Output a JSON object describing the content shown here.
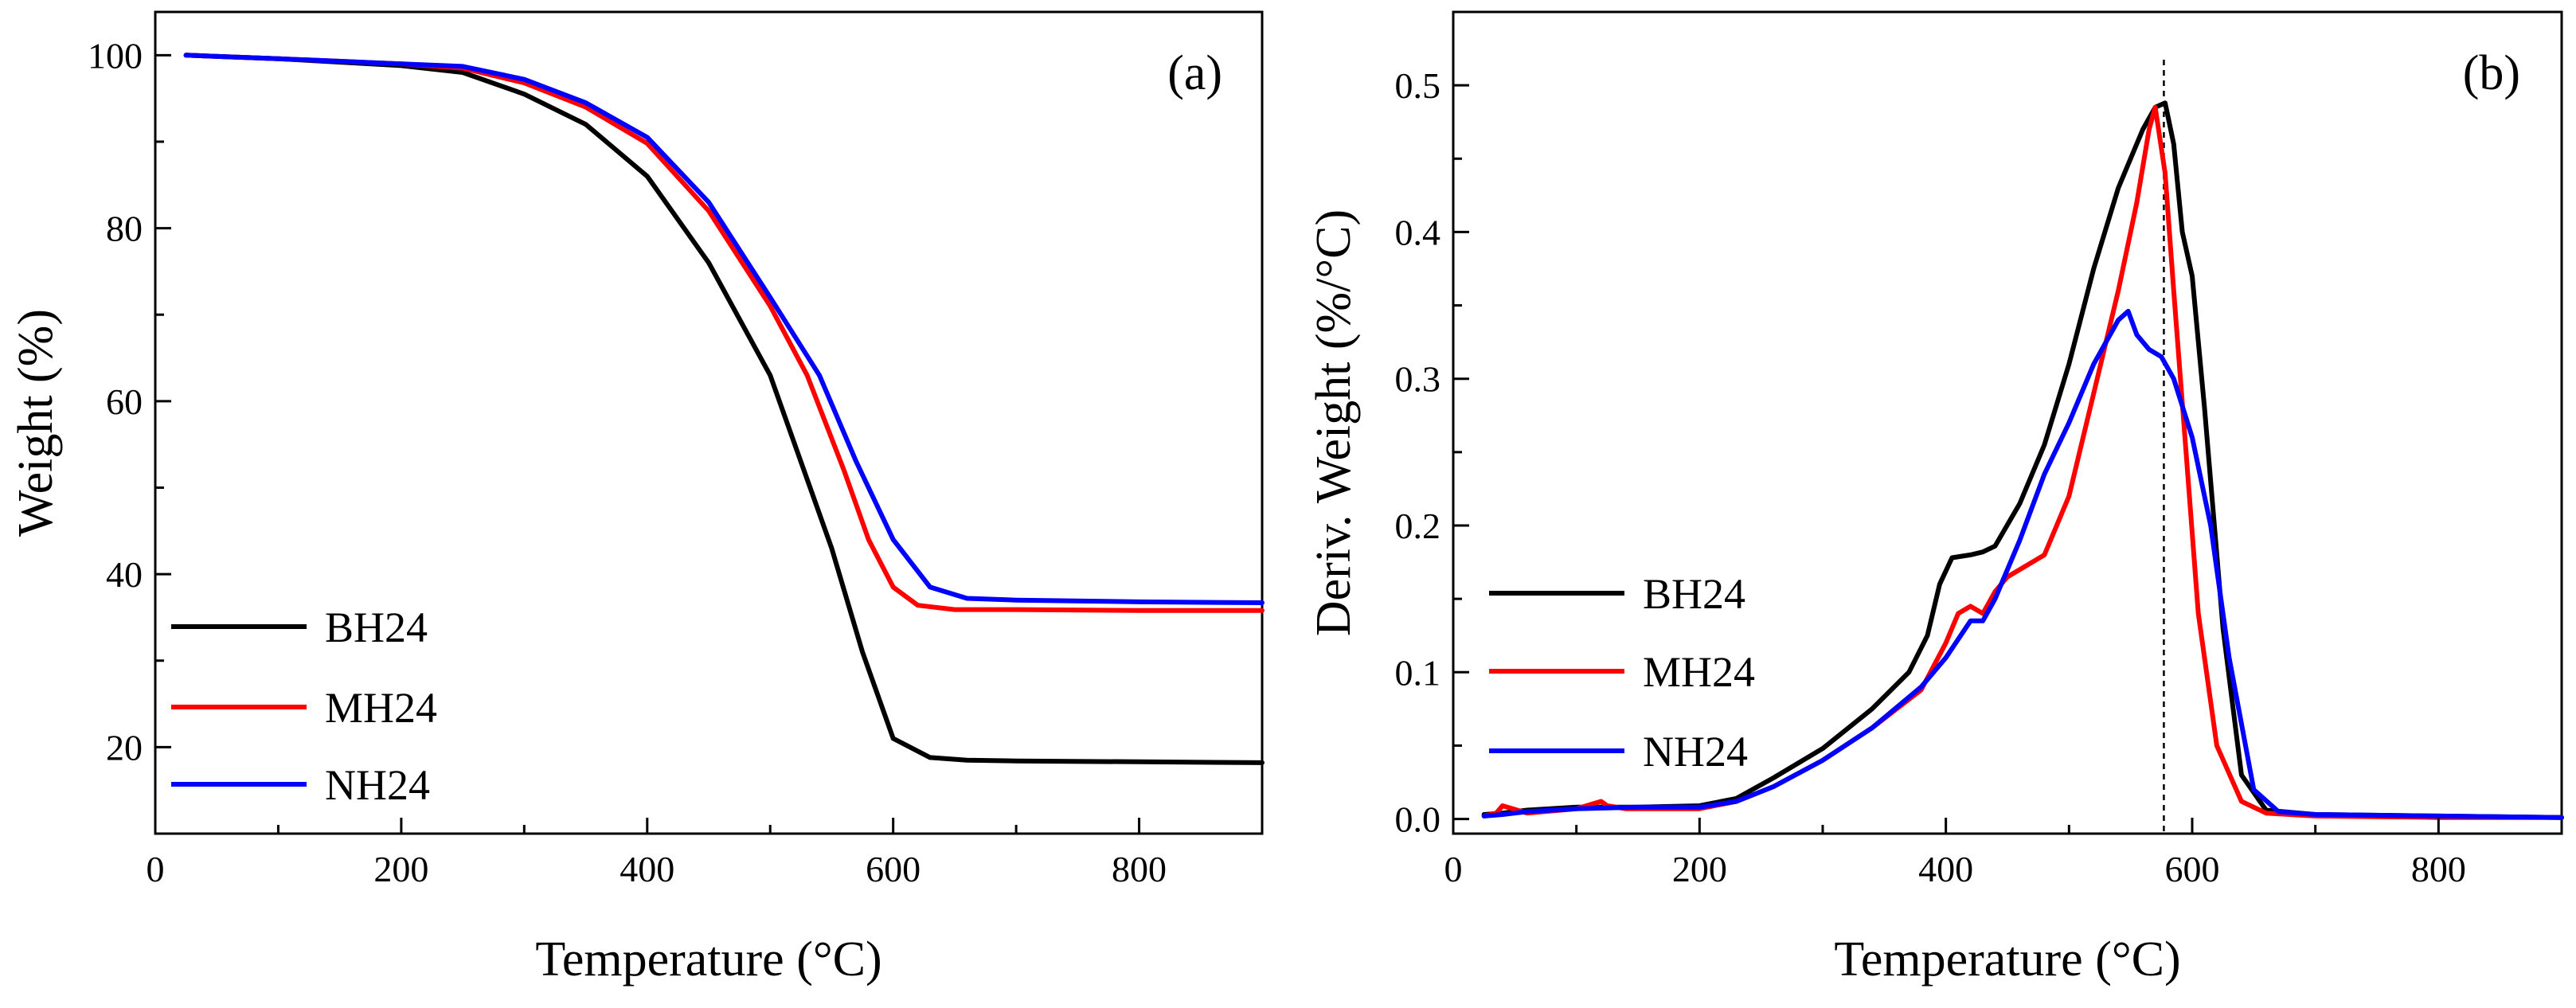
{
  "chart_data": [
    {
      "type": "line",
      "panel_label": "(a)",
      "xlabel": "Temperature (°C)",
      "ylabel": "Weight (%)",
      "xlim": [
        0,
        900
      ],
      "ylim": [
        10,
        105
      ],
      "xticks": [
        0,
        200,
        400,
        600,
        800
      ],
      "yticks": [
        20,
        40,
        60,
        80,
        100
      ],
      "legend_position": "bottom-left",
      "series": [
        {
          "name": "BH24",
          "color": "#000000",
          "x": [
            25,
            100,
            200,
            250,
            300,
            350,
            400,
            450,
            500,
            550,
            575,
            600,
            630,
            660,
            700,
            800,
            900
          ],
          "y": [
            100,
            99.6,
            98.8,
            98,
            95.5,
            92,
            86,
            76,
            63,
            43,
            31,
            21,
            18.8,
            18.5,
            18.4,
            18.3,
            18.2
          ]
        },
        {
          "name": "MH24",
          "color": "#ff0000",
          "x": [
            25,
            100,
            200,
            250,
            300,
            350,
            400,
            450,
            500,
            530,
            560,
            580,
            600,
            620,
            650,
            700,
            800,
            900
          ],
          "y": [
            100,
            99.6,
            99,
            98.5,
            96.8,
            94,
            89.8,
            82,
            71,
            63,
            52,
            44,
            38.5,
            36.4,
            35.9,
            35.9,
            35.8,
            35.8
          ]
        },
        {
          "name": "NH24",
          "color": "#0000ff",
          "x": [
            25,
            100,
            200,
            250,
            300,
            350,
            400,
            450,
            500,
            540,
            570,
            600,
            630,
            660,
            700,
            800,
            900
          ],
          "y": [
            100,
            99.6,
            99,
            98.7,
            97.2,
            94.5,
            90.5,
            83,
            72,
            63,
            53,
            44,
            38.5,
            37.2,
            37,
            36.8,
            36.7
          ]
        }
      ]
    },
    {
      "type": "line",
      "panel_label": "(b)",
      "xlabel": "Temperature (°C)",
      "ylabel": "Deriv. Weight (%/°C)",
      "xlim": [
        0,
        900
      ],
      "ylim": [
        -0.01,
        0.55
      ],
      "xticks": [
        0,
        200,
        400,
        600,
        800
      ],
      "yticks": [
        0.0,
        0.1,
        0.2,
        0.3,
        0.4,
        0.5
      ],
      "reference_line_x": 577,
      "legend_position": "bottom-left",
      "series": [
        {
          "name": "BH24",
          "color": "#000000",
          "x": [
            25,
            40,
            60,
            100,
            150,
            200,
            230,
            260,
            300,
            340,
            370,
            385,
            395,
            405,
            420,
            430,
            440,
            460,
            480,
            500,
            520,
            540,
            560,
            570,
            578,
            585,
            592,
            600,
            610,
            625,
            640,
            660,
            700,
            800,
            900
          ],
          "y": [
            0.003,
            0.004,
            0.006,
            0.008,
            0.008,
            0.009,
            0.014,
            0.028,
            0.048,
            0.075,
            0.1,
            0.125,
            0.16,
            0.178,
            0.18,
            0.182,
            0.186,
            0.215,
            0.255,
            0.31,
            0.375,
            0.43,
            0.47,
            0.485,
            0.488,
            0.46,
            0.4,
            0.37,
            0.28,
            0.13,
            0.03,
            0.006,
            0.003,
            0.002,
            0.001
          ]
        },
        {
          "name": "MH24",
          "color": "#ff0000",
          "x": [
            25,
            35,
            40,
            60,
            100,
            120,
            125,
            140,
            200,
            230,
            260,
            300,
            340,
            380,
            400,
            410,
            420,
            430,
            440,
            450,
            460,
            480,
            500,
            520,
            540,
            555,
            565,
            570,
            578,
            585,
            595,
            605,
            620,
            640,
            660,
            700,
            800,
            900
          ],
          "y": [
            0.002,
            0.004,
            0.009,
            0.004,
            0.007,
            0.012,
            0.009,
            0.007,
            0.007,
            0.012,
            0.022,
            0.04,
            0.062,
            0.088,
            0.12,
            0.14,
            0.145,
            0.14,
            0.155,
            0.165,
            0.17,
            0.18,
            0.22,
            0.29,
            0.36,
            0.42,
            0.47,
            0.485,
            0.44,
            0.36,
            0.25,
            0.14,
            0.05,
            0.012,
            0.004,
            0.002,
            0.001,
            0.001
          ]
        },
        {
          "name": "NH24",
          "color": "#0000ff",
          "x": [
            25,
            40,
            60,
            100,
            150,
            200,
            230,
            260,
            300,
            340,
            380,
            400,
            420,
            430,
            440,
            460,
            480,
            500,
            520,
            540,
            548,
            555,
            565,
            575,
            585,
            600,
            615,
            630,
            650,
            670,
            700,
            800,
            900
          ],
          "y": [
            0.002,
            0.003,
            0.005,
            0.007,
            0.008,
            0.008,
            0.012,
            0.022,
            0.04,
            0.062,
            0.09,
            0.11,
            0.135,
            0.135,
            0.15,
            0.19,
            0.235,
            0.27,
            0.31,
            0.34,
            0.346,
            0.33,
            0.32,
            0.315,
            0.3,
            0.26,
            0.2,
            0.11,
            0.02,
            0.005,
            0.003,
            0.002,
            0.001
          ]
        }
      ]
    }
  ]
}
